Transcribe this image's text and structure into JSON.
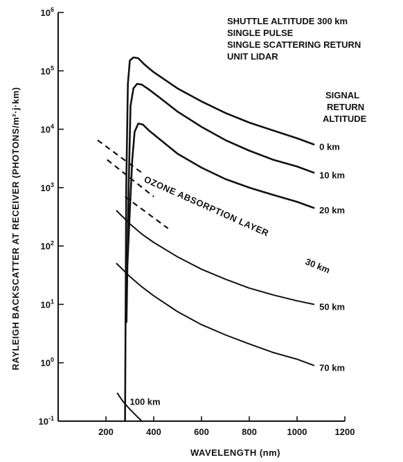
{
  "chart_data": {
    "type": "line",
    "title": "",
    "xlabel": "WAVELENGTH (nm)",
    "ylabel": "RAYLEIGH BACKSCATTER AT RECEIVER (PHOTONS/m²·j·km)",
    "xlim": [
      0,
      1200
    ],
    "ylim": [
      0.1,
      1000000
    ],
    "yscale": "log",
    "x_ticks": [
      {
        "value": 200,
        "label": "200"
      },
      {
        "value": 400,
        "label": "400"
      },
      {
        "value": 600,
        "label": "600"
      },
      {
        "value": 800,
        "label": "800"
      },
      {
        "value": 1000,
        "label": "1000"
      },
      {
        "value": 1200,
        "label": "1200"
      }
    ],
    "y_ticks": [
      {
        "value": 0.1,
        "base": "10",
        "exp": "-1"
      },
      {
        "value": 1,
        "base": "10",
        "exp": "0"
      },
      {
        "value": 10,
        "base": "10",
        "exp": "1"
      },
      {
        "value": 100,
        "base": "10",
        "exp": "2"
      },
      {
        "value": 1000,
        "base": "10",
        "exp": "3"
      },
      {
        "value": 10000,
        "base": "10",
        "exp": "4"
      },
      {
        "value": 100000,
        "base": "10",
        "exp": "5"
      },
      {
        "value": 1000000,
        "base": "10",
        "exp": "6"
      }
    ],
    "grid": false,
    "notes": [
      "SHUTTLE ALTITUDE 300 km",
      "SINGLE PULSE",
      "SINGLE SCATTERING RETURN",
      "UNIT LIDAR"
    ],
    "legend_title": [
      "SIGNAL",
      "RETURN",
      "ALTITUDE"
    ],
    "series": [
      {
        "name": "0 km",
        "x": [
          280,
          285,
          292,
          300,
          315,
          335,
          360,
          400,
          500,
          600,
          700,
          800,
          900,
          1000,
          1070
        ],
        "y": [
          0.1,
          1000,
          60000,
          150000,
          170000,
          165000,
          130000,
          95000,
          50000,
          30000,
          19000,
          13000,
          9500,
          7000,
          5500
        ]
      },
      {
        "name": "10 km",
        "x": [
          286,
          295,
          303,
          315,
          330,
          350,
          380,
          420,
          500,
          600,
          700,
          800,
          900,
          1000,
          1070
        ],
        "y": [
          5,
          1000,
          25000,
          50000,
          60000,
          58000,
          48000,
          36000,
          20000,
          11000,
          6500,
          4300,
          3000,
          2300,
          1800
        ]
      },
      {
        "name": "20 km",
        "x": [
          290,
          300,
          310,
          320,
          335,
          355,
          380,
          420,
          500,
          600,
          700,
          800,
          900,
          1000,
          1070
        ],
        "y": [
          50,
          400,
          3000,
          9000,
          12500,
          12000,
          9500,
          7000,
          3800,
          2200,
          1400,
          1000,
          750,
          570,
          450
        ]
      },
      {
        "name": "50 km",
        "x": [
          245,
          300,
          350,
          400,
          500,
          600,
          700,
          800,
          900,
          1000,
          1070
        ],
        "y": [
          400,
          240,
          160,
          115,
          65,
          40,
          27,
          19,
          14.5,
          11.5,
          10
        ]
      },
      {
        "name": "70 km",
        "x": [
          245,
          300,
          350,
          400,
          500,
          600,
          700,
          800,
          900,
          1000,
          1070
        ],
        "y": [
          50,
          30,
          20,
          14,
          7.5,
          4.5,
          3,
          2.1,
          1.5,
          1.15,
          0.9
        ]
      },
      {
        "name": "100 km",
        "x": [
          248,
          270,
          300,
          330,
          350
        ],
        "y": [
          0.3,
          0.22,
          0.16,
          0.12,
          0.1
        ]
      }
    ],
    "extra_labels": [
      "30 km"
    ],
    "annotation": "OZONE ABSORPTION LAYER",
    "ozone_dashes": [
      {
        "x": [
          280,
          460
        ],
        "y": [
          700,
          200
        ]
      },
      {
        "x": [
          205,
          400
        ],
        "y": [
          3000,
          700
        ]
      },
      {
        "x": [
          165,
          350
        ],
        "y": [
          6500,
          1800
        ]
      }
    ]
  }
}
